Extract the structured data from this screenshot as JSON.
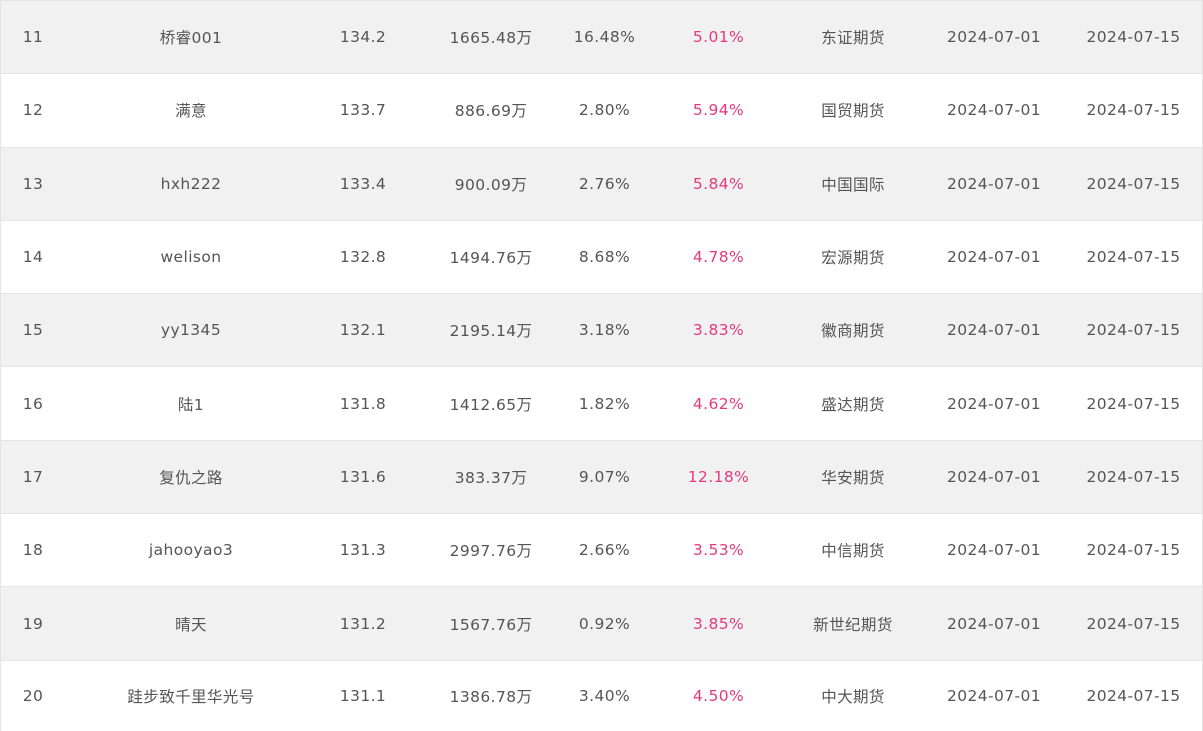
{
  "colors": {
    "row_alt_bg": "#f1f1f1",
    "row_bg": "#ffffff",
    "border": "#e4e4e4",
    "text": "#555555",
    "accent_pink": "#e43a7d"
  },
  "rows": [
    {
      "rank": "11",
      "name": "桥睿001",
      "index": "134.2",
      "fund": "1665.48万",
      "ret": "16.48%",
      "draw": "5.01%",
      "firm": "东证期货",
      "start": "2024-07-01",
      "end": "2024-07-15"
    },
    {
      "rank": "12",
      "name": "满意",
      "index": "133.7",
      "fund": "886.69万",
      "ret": "2.80%",
      "draw": "5.94%",
      "firm": "国贸期货",
      "start": "2024-07-01",
      "end": "2024-07-15"
    },
    {
      "rank": "13",
      "name": "hxh222",
      "index": "133.4",
      "fund": "900.09万",
      "ret": "2.76%",
      "draw": "5.84%",
      "firm": "中国国际",
      "start": "2024-07-01",
      "end": "2024-07-15"
    },
    {
      "rank": "14",
      "name": "welison",
      "index": "132.8",
      "fund": "1494.76万",
      "ret": "8.68%",
      "draw": "4.78%",
      "firm": "宏源期货",
      "start": "2024-07-01",
      "end": "2024-07-15"
    },
    {
      "rank": "15",
      "name": "yy1345",
      "index": "132.1",
      "fund": "2195.14万",
      "ret": "3.18%",
      "draw": "3.83%",
      "firm": "徽商期货",
      "start": "2024-07-01",
      "end": "2024-07-15"
    },
    {
      "rank": "16",
      "name": "陆1",
      "index": "131.8",
      "fund": "1412.65万",
      "ret": "1.82%",
      "draw": "4.62%",
      "firm": "盛达期货",
      "start": "2024-07-01",
      "end": "2024-07-15"
    },
    {
      "rank": "17",
      "name": "复仇之路",
      "index": "131.6",
      "fund": "383.37万",
      "ret": "9.07%",
      "draw": "12.18%",
      "firm": "华安期货",
      "start": "2024-07-01",
      "end": "2024-07-15"
    },
    {
      "rank": "18",
      "name": "jahooyao3",
      "index": "131.3",
      "fund": "2997.76万",
      "ret": "2.66%",
      "draw": "3.53%",
      "firm": "中信期货",
      "start": "2024-07-01",
      "end": "2024-07-15"
    },
    {
      "rank": "19",
      "name": "晴天",
      "index": "131.2",
      "fund": "1567.76万",
      "ret": "0.92%",
      "draw": "3.85%",
      "firm": "新世纪期货",
      "start": "2024-07-01",
      "end": "2024-07-15"
    },
    {
      "rank": "20",
      "name": "跬步致千里华光号",
      "index": "131.1",
      "fund": "1386.78万",
      "ret": "3.40%",
      "draw": "4.50%",
      "firm": "中大期货",
      "start": "2024-07-01",
      "end": "2024-07-15"
    }
  ]
}
